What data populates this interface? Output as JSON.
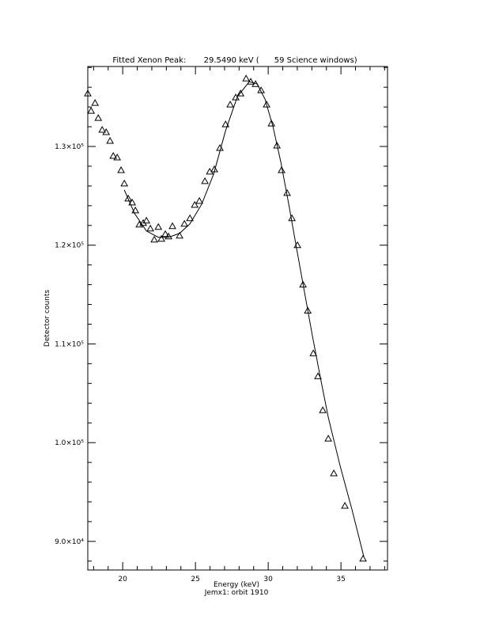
{
  "chart_data": {
    "type": "scatter",
    "title": "Fitted Xenon Peak:       29.5490 keV (      59 Science windows)",
    "xlabel": "Energy (keV)",
    "subtitle": "Jemx1: orbit 1910",
    "ylabel": "Detector counts",
    "xlim": [
      17.6,
      38.2
    ],
    "ylim": [
      87100,
      138100
    ],
    "xticks": [
      20,
      25,
      30,
      35
    ],
    "xminor": [
      18,
      19,
      21,
      22,
      23,
      24,
      26,
      27,
      28,
      29,
      31,
      32,
      33,
      34,
      36,
      37,
      38
    ],
    "yticks": [
      {
        "value": 90000,
        "label": "9.0×10⁴"
      },
      {
        "value": 100000,
        "label": "1.0×10⁵"
      },
      {
        "value": 110000,
        "label": "1.1×10⁵"
      },
      {
        "value": 120000,
        "label": "1.2×10⁵"
      },
      {
        "value": 130000,
        "label": "1.3×10⁵"
      }
    ],
    "yminor": [
      88000,
      92000,
      94000,
      96000,
      98000,
      102000,
      104000,
      106000,
      108000,
      112000,
      114000,
      116000,
      118000,
      122000,
      124000,
      126000,
      128000,
      132000,
      134000,
      136000,
      138000
    ],
    "color": "#000000",
    "series": [
      {
        "marker": "triangle",
        "x": [
          17.6,
          17.83,
          18.1,
          18.32,
          18.59,
          18.86,
          19.13,
          19.35,
          19.62,
          19.89,
          20.11,
          20.38,
          20.65,
          20.87,
          21.14,
          21.41,
          21.63,
          21.9,
          22.17,
          22.45,
          22.66,
          22.93,
          23.15,
          23.42,
          23.91,
          24.24,
          24.62,
          24.95,
          25.27,
          25.65,
          25.98,
          26.3,
          26.68,
          27.07,
          27.39,
          27.77,
          28.1,
          28.48,
          28.8,
          29.13,
          29.51,
          29.89,
          30.22,
          30.6,
          30.92,
          31.3,
          31.63,
          32.01,
          32.39,
          32.72,
          33.1,
          33.42,
          33.75,
          34.13,
          34.51,
          35.27,
          36.52
        ],
        "values": [
          135360,
          133600,
          134400,
          132880,
          131680,
          131440,
          130560,
          129040,
          128880,
          127600,
          126240,
          124720,
          124320,
          123520,
          122080,
          122240,
          122480,
          121680,
          120560,
          121840,
          120640,
          121120,
          120880,
          121920,
          120960,
          122160,
          122720,
          124080,
          124480,
          126480,
          127440,
          127680,
          129840,
          132240,
          134240,
          134960,
          135360,
          136880,
          136560,
          136320,
          135680,
          134240,
          132320,
          130080,
          127600,
          125280,
          122720,
          120000,
          116000,
          113360,
          109040,
          106720,
          103280,
          100400,
          96880,
          93600,
          88240
        ]
      },
      {
        "marker": "line",
        "x": [
          20.11,
          20.82,
          21.63,
          22.45,
          23.15,
          23.91,
          24.62,
          25.43,
          26.25,
          27.07,
          27.88,
          28.7,
          29.24,
          29.78,
          30.33,
          30.87,
          31.41,
          31.96,
          32.5,
          33.04,
          33.59,
          34.13,
          34.95,
          35.76,
          36.58
        ],
        "values": [
          125600,
          123200,
          121440,
          120800,
          120800,
          121200,
          122160,
          124160,
          127200,
          131600,
          135040,
          136560,
          136320,
          134800,
          132000,
          128400,
          124160,
          119600,
          115200,
          110800,
          106560,
          102560,
          97600,
          93200,
          88400
        ]
      }
    ]
  }
}
